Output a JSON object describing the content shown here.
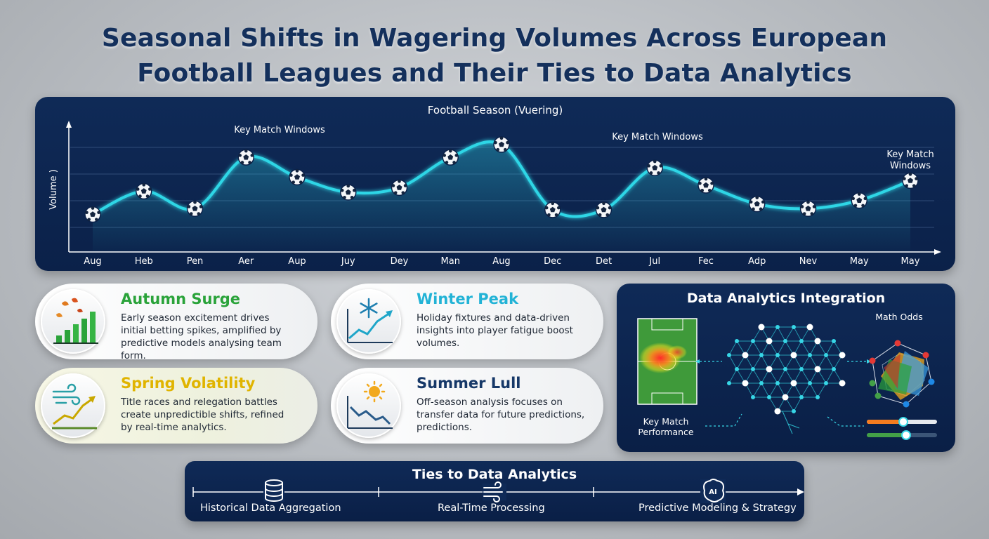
{
  "title": {
    "line1": "Seasonal Shifts in Wagering Volumes Across European",
    "line2": "Football Leagues and Their Ties to Data Analytics"
  },
  "chart_data": {
    "type": "line",
    "title": "Football Season (Vuering)",
    "ylabel": "Volume )",
    "xlabel": "",
    "categories": [
      "Aug",
      "Heb",
      "Pen",
      "Aer",
      "Aup",
      "Juy",
      "Dey",
      "Man",
      "Aug",
      "Dec",
      "Det",
      "Jul",
      "Fec",
      "Adp",
      "Nev",
      "May",
      "May"
    ],
    "series": [
      {
        "values": [
          0.28,
          0.48,
          0.33,
          0.77,
          0.6,
          0.47,
          0.51,
          0.77,
          0.88,
          0.32,
          0.32,
          0.68,
          0.53,
          0.37,
          0.33,
          0.4,
          0.57
        ]
      }
    ],
    "ylim": [
      0,
      1
    ],
    "grid": true,
    "annotations": [
      "Key Match Windows",
      "Key Match Windows",
      "Key Match Windows"
    ],
    "colors": {
      "line": "#2fd6e6",
      "panel": "#0f2a57"
    }
  },
  "cards": [
    {
      "title": "Autumn Surge",
      "color": "#2aa33a",
      "icon": "leaves-bar-chart-icon",
      "text": "Early season excitement drives initial betting spikes, amplified by predictive models analysing team form."
    },
    {
      "title": "Winter Peak",
      "color": "#22b3d6",
      "icon": "snowflake-line-chart-icon",
      "text": "Holiday fixtures and data-driven insights into player fatigue boost volumes."
    },
    {
      "title": "Spring Volatility",
      "color": "#e0b400",
      "icon": "wind-rising-chart-icon",
      "text": "Title races and relegation battles create unpredictible shifts, refined by real-time analytics."
    },
    {
      "title": "Summer Lull",
      "color": "#163868",
      "icon": "sun-declining-chart-icon",
      "text": "Off-season analysis focuses on transfer data for future predictions, predictions."
    }
  ],
  "analytics": {
    "title": "Data Analytics Integration",
    "math_odds": "Math Odds",
    "key_match_line1": "Key Match",
    "key_match_line2": "Performance"
  },
  "ties": {
    "title": "Ties to Data Analytics",
    "steps": [
      {
        "label": "Historical Data Aggregation",
        "icon": "database-icon"
      },
      {
        "label": "Real-Time Processing",
        "icon": "wind-flow-icon"
      },
      {
        "label": "Predictive Modeling & Strategy",
        "icon": "ai-brain-icon"
      }
    ]
  }
}
